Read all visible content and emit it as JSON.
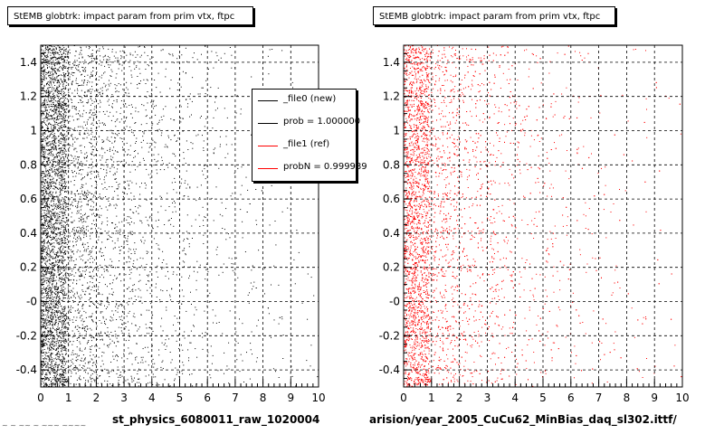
{
  "colors": {
    "series_a": "#000000",
    "series_b": "#ff0000",
    "grid": "#000000"
  },
  "chart_data": [
    {
      "type": "scatter",
      "title": "StEMB globtrk: impact param from prim vtx, ftpc",
      "xlabel": "st_physics_6080011_raw_1020004",
      "ylabel": "",
      "xlim": [
        0,
        10
      ],
      "ylim": [
        -0.5,
        1.5
      ],
      "x_ticks": [
        "0",
        "1",
        "2",
        "3",
        "4",
        "5",
        "6",
        "7",
        "8",
        "9",
        "10"
      ],
      "y_ticks": [
        "-0.4",
        "-0.2",
        "-0",
        "0.2",
        "0.4",
        "0.6",
        "0.8",
        "1",
        "1.2",
        "1.4"
      ],
      "grid": true,
      "series": [
        {
          "color": "#000000",
          "x_profile": "dense 0-0.9, falling off toward 10",
          "approx_points": 6000
        }
      ]
    },
    {
      "type": "scatter",
      "title": "StEMB globtrk: impact param from prim vtx, ftpc",
      "xlabel": "arision/year_2005_CuCu62_MinBias_daq_sl302.ittf/",
      "ylabel": "",
      "xlim": [
        0,
        10
      ],
      "ylim": [
        -0.5,
        1.5
      ],
      "x_ticks": [
        "0",
        "1",
        "2",
        "3",
        "4",
        "5",
        "6",
        "7",
        "8",
        "9",
        "10"
      ],
      "y_ticks": [
        "-0.4",
        "-0.2",
        "-0",
        "0.2",
        "0.4",
        "0.6",
        "0.8",
        "1",
        "1.2",
        "1.4"
      ],
      "grid": true,
      "series": [
        {
          "color": "#ff0000",
          "x_profile": "dense 0-0.9, falling off toward 10",
          "approx_points": 5000
        }
      ]
    }
  ],
  "legend": {
    "items": [
      {
        "label": "_file0 (new)",
        "color": "#000000"
      },
      {
        "label": "prob = 1.000000",
        "color": "#000000"
      },
      {
        "label": "_file1 (ref)",
        "color": "#ff0000"
      },
      {
        "label": "probN = 0.999989",
        "color": "#ff0000"
      }
    ]
  },
  "footer": {
    "corner_text": "~ ~ ~~ ~ ~~~ ~~~~"
  }
}
